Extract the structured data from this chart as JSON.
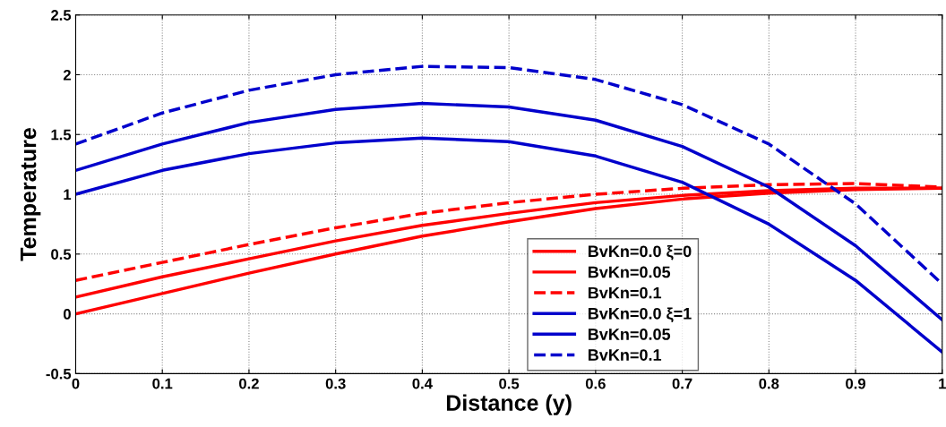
{
  "chart_data": {
    "type": "line",
    "xlabel": "Distance (y)",
    "ylabel": "Temperature",
    "x": [
      0,
      0.1,
      0.2,
      0.3,
      0.4,
      0.5,
      0.6,
      0.7,
      0.8,
      0.9,
      1.0
    ],
    "xlim": [
      0,
      1
    ],
    "xticks": [
      0,
      0.1,
      0.2,
      0.3,
      0.4,
      0.5,
      0.6,
      0.7,
      0.8,
      0.9,
      1
    ],
    "ylim": [
      -0.5,
      2.5
    ],
    "yticks": [
      -0.5,
      0,
      0.5,
      1,
      1.5,
      2,
      2.5
    ],
    "grid": true,
    "legend": "bottom",
    "series": [
      {
        "name": "BvKn=0.0 ξ=0",
        "color": "#ff0000",
        "line_style": "solid",
        "values": [
          0,
          0.17,
          0.34,
          0.5,
          0.65,
          0.77,
          0.88,
          0.96,
          1.01,
          1.04,
          1.05
        ]
      },
      {
        "name": "BvKn=0.05",
        "color": "#ff0000",
        "line_style": "solid",
        "values": [
          0.14,
          0.31,
          0.46,
          0.61,
          0.74,
          0.84,
          0.93,
          0.99,
          1.03,
          1.05,
          1.05
        ]
      },
      {
        "name": "BvKn=0.1",
        "color": "#ff0000",
        "line_style": "dashed",
        "values": [
          0.28,
          0.43,
          0.58,
          0.72,
          0.84,
          0.93,
          1.0,
          1.05,
          1.08,
          1.09,
          1.06
        ]
      },
      {
        "name": "BvKn=0.0 ξ=1",
        "color": "#0000cc",
        "line_style": "solid",
        "values": [
          1.0,
          1.2,
          1.34,
          1.43,
          1.47,
          1.44,
          1.32,
          1.1,
          0.75,
          0.28,
          -0.32
        ]
      },
      {
        "name": "BvKn=0.05",
        "color": "#0000cc",
        "line_style": "solid",
        "values": [
          1.2,
          1.42,
          1.6,
          1.71,
          1.76,
          1.73,
          1.62,
          1.4,
          1.06,
          0.57,
          -0.05
        ]
      },
      {
        "name": "BvKn=0.1",
        "color": "#0000cc",
        "line_style": "dashed",
        "values": [
          1.42,
          1.68,
          1.87,
          2.0,
          2.07,
          2.06,
          1.96,
          1.75,
          1.42,
          0.92,
          0.25
        ]
      }
    ]
  }
}
